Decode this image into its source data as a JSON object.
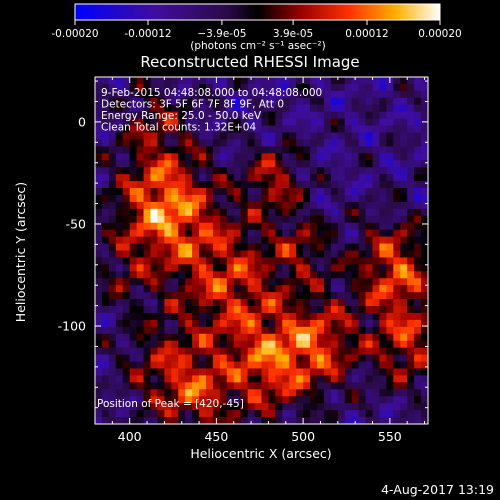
{
  "chart_data": {
    "type": "heatmap",
    "title": "Reconstructed RHESSI Image",
    "xlabel": "Heliocentric X (arcsec)",
    "ylabel": "Heliocentric Y (arcsec)",
    "xlim": [
      380,
      572
    ],
    "ylim": [
      -148,
      22
    ],
    "x_ticks": [
      400,
      450,
      500,
      550
    ],
    "y_ticks": [
      0,
      -50,
      -100
    ],
    "colorbar": {
      "range": [
        -0.0002,
        0.0002
      ],
      "tick_values": [
        -0.0002,
        -0.00012,
        -3.9e-05,
        3.9e-05,
        0.00012,
        0.0002
      ],
      "tick_labels": [
        "-0.00020",
        "-0.00012",
        "−3.9e-05",
        "3.9e-05",
        "0.00012",
        "0.00020"
      ],
      "units_label": "(photons cm⁻² s⁻¹ asec⁻²)"
    },
    "info_lines": [
      "9-Feb-2015 04:48:08.000 to 04:48:08.000",
      "Detectors: 3F 5F 6F 7F 8F 9F, Att 0",
      "Energy Range: 25.0 - 50.0 keV",
      "Clean     Total counts: 1.32E+04"
    ],
    "peak_label": "Position of Peak = [420,-45]",
    "peak": [
      420,
      -45
    ],
    "sources": [
      {
        "x": 420,
        "y": -42,
        "amp": 0.0002,
        "r": 20
      },
      {
        "x": 458,
        "y": -78,
        "amp": 0.00014,
        "r": 22
      },
      {
        "x": 483,
        "y": -28,
        "amp": 0.00012,
        "r": 12
      },
      {
        "x": 480,
        "y": -120,
        "amp": 0.00015,
        "r": 18
      },
      {
        "x": 510,
        "y": -108,
        "amp": 0.00014,
        "r": 16
      },
      {
        "x": 553,
        "y": -72,
        "amp": 0.00016,
        "r": 17
      },
      {
        "x": 560,
        "y": -110,
        "amp": 0.00013,
        "r": 15
      },
      {
        "x": 420,
        "y": -120,
        "amp": 0.0001,
        "r": 18
      },
      {
        "x": 415,
        "y": 0,
        "amp": 8e-05,
        "r": 14
      },
      {
        "x": 500,
        "y": -62,
        "amp": 9e-05,
        "r": 12
      },
      {
        "x": 440,
        "y": -135,
        "amp": 0.00011,
        "r": 14
      },
      {
        "x": 395,
        "y": -75,
        "amp": 6e-05,
        "r": 12
      }
    ]
  },
  "timestamp": "4-Aug-2017 13:19"
}
